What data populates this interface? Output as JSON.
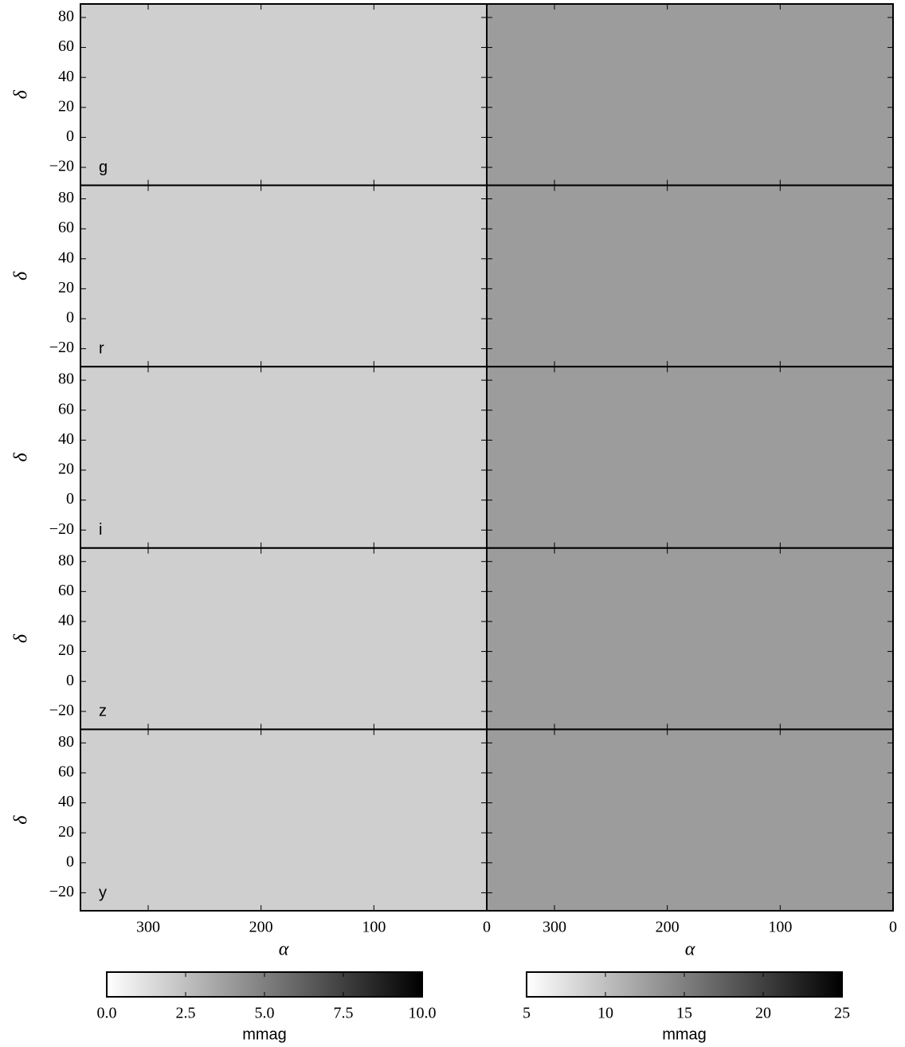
{
  "chart_data": {
    "type": "sky-map-grid",
    "bands": [
      "g",
      "r",
      "i",
      "z",
      "y"
    ],
    "xlabel": "α",
    "ylabel": "δ",
    "xlim": [
      360,
      0
    ],
    "xticks": [
      300,
      200,
      100,
      0
    ],
    "ylim": [
      -32,
      89
    ],
    "yticks": [
      {
        "value": -20,
        "label": "−20"
      },
      0,
      20,
      40,
      60,
      80
    ],
    "colorbars": [
      {
        "lim": [
          0,
          10
        ],
        "ticks": [
          {
            "value": 0,
            "label": "0.0"
          },
          {
            "value": 2.5,
            "label": "2.5"
          },
          {
            "value": 5,
            "label": "5.0"
          },
          {
            "value": 7.5,
            "label": "7.5"
          },
          {
            "value": 10,
            "label": "10.0"
          }
        ],
        "label": "mmag"
      },
      {
        "lim": [
          5,
          25
        ],
        "ticks": [
          5,
          10,
          15,
          20,
          25
        ],
        "label": "mmag"
      }
    ]
  }
}
